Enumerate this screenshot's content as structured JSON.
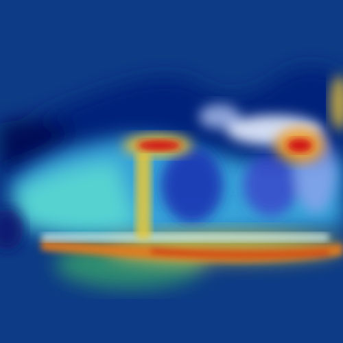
{
  "image": {
    "kind": "saliency heatmap overlay of a sneaker (side view)",
    "colormap": "jet",
    "colors": {
      "background": "#0d3b85",
      "low": "#00008f",
      "mid_low": "#1e90ff",
      "mid": "#40e0d0",
      "mid_high": "#f0e442",
      "high": "#d7191c"
    }
  }
}
